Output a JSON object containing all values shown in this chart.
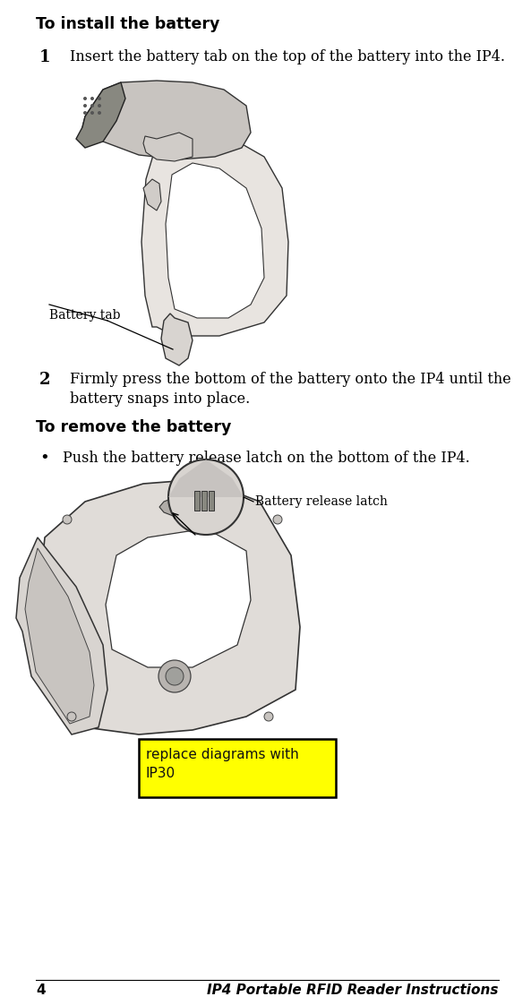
{
  "title_install": "To install the battery",
  "title_remove": "To remove the battery",
  "step1_num": "1",
  "step1_text": "Insert the battery tab on the top of the battery into the IP4.",
  "step2_num": "2",
  "step2_text": "Firmly press the bottom of the battery onto the IP4 until the\nbattery snaps into place.",
  "bullet_text": "Push the battery release latch on the bottom of the IP4.",
  "label_battery_tab": "Battery tab",
  "label_release_latch": "Battery release latch",
  "note_box_text": "replace diagrams with\nIP30",
  "note_box_color": "#FFFF00",
  "note_box_border": "#000000",
  "page_num": "4",
  "footer_text": "IP4 Portable RFID Reader Instructions",
  "bg_color": "#FFFFFF",
  "text_color": "#000000",
  "figsize": [
    5.74,
    11.22
  ],
  "dpi": 100,
  "ml": 0.07,
  "mr": 0.97,
  "title_fontsize": 12.5,
  "body_fontsize": 11.5,
  "step_num_fontsize": 13
}
